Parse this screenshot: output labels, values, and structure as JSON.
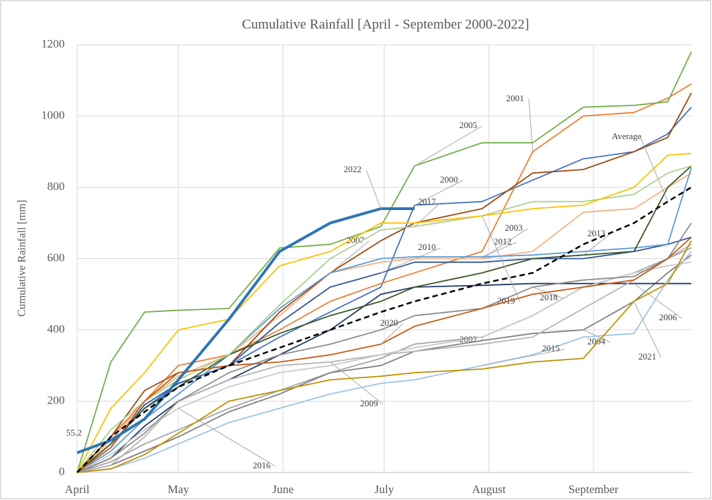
{
  "chart_data": {
    "type": "line",
    "title": "Cumulative Rainfall [April - September 2000-2022]",
    "y_label": "Cumulative Rainfall [mm]",
    "x": [
      0,
      10,
      20,
      30,
      45,
      60,
      75,
      90,
      100,
      120,
      135,
      150,
      165,
      175,
      182
    ],
    "xlim": [
      0,
      182
    ],
    "xticks": [
      {
        "value": 0,
        "label": "April"
      },
      {
        "value": 30,
        "label": "May"
      },
      {
        "value": 61,
        "label": "June"
      },
      {
        "value": 91,
        "label": "July"
      },
      {
        "value": 122,
        "label": "August"
      },
      {
        "value": 153,
        "label": "September"
      }
    ],
    "ylim": [
      0,
      1200
    ],
    "yticks": [
      0,
      200,
      400,
      600,
      800,
      1000,
      1200
    ],
    "grid": true,
    "series": [
      {
        "name": "2000",
        "color": "#4472c4",
        "values": [
          0,
          80,
          180,
          250,
          300,
          380,
          450,
          520,
          750,
          760,
          820,
          880,
          900,
          950,
          1025
        ]
      },
      {
        "name": "2001",
        "color": "#ed7d31",
        "values": [
          0,
          100,
          200,
          300,
          330,
          400,
          480,
          530,
          560,
          620,
          900,
          1000,
          1010,
          1050,
          1090
        ]
      },
      {
        "name": "2002",
        "color": "#a5a5a5",
        "values": [
          0,
          30,
          80,
          120,
          180,
          230,
          280,
          320,
          360,
          380,
          440,
          520,
          560,
          600,
          630
        ]
      },
      {
        "name": "2003",
        "color": "#f4b183",
        "values": [
          0,
          90,
          200,
          270,
          330,
          440,
          560,
          590,
          600,
          600,
          620,
          730,
          740,
          800,
          840
        ]
      },
      {
        "name": "2004",
        "color": "#7f7f7f",
        "values": [
          0,
          20,
          60,
          100,
          170,
          220,
          280,
          300,
          340,
          370,
          390,
          400,
          480,
          560,
          610
        ]
      },
      {
        "name": "2005",
        "color": "#70ad47",
        "values": [
          0,
          310,
          450,
          455,
          460,
          630,
          640,
          690,
          860,
          925,
          925,
          1025,
          1030,
          1040,
          1180
        ]
      },
      {
        "name": "2006",
        "color": "#203864",
        "values": [
          0,
          40,
          130,
          200,
          260,
          330,
          400,
          500,
          520,
          525,
          530,
          530,
          530,
          530,
          530
        ]
      },
      {
        "name": "2007",
        "color": "#9e480e",
        "values": [
          0,
          100,
          230,
          280,
          300,
          450,
          560,
          650,
          700,
          740,
          840,
          850,
          900,
          940,
          1065
        ]
      },
      {
        "name": "2009",
        "color": "#b4b4b4",
        "values": [
          0,
          20,
          100,
          200,
          260,
          300,
          310,
          330,
          340,
          360,
          380,
          460,
          540,
          600,
          640
        ]
      },
      {
        "name": "2010",
        "color": "#2f5597",
        "values": [
          0,
          70,
          190,
          250,
          300,
          420,
          520,
          560,
          590,
          590,
          600,
          600,
          620,
          640,
          660
        ]
      },
      {
        "name": "2012",
        "color": "#5b9bd5",
        "values": [
          0,
          60,
          150,
          220,
          330,
          460,
          560,
          600,
          605,
          605,
          610,
          620,
          630,
          640,
          855
        ]
      },
      {
        "name": "2013",
        "color": "#375623",
        "values": [
          0,
          80,
          180,
          240,
          330,
          390,
          440,
          480,
          520,
          560,
          600,
          610,
          620,
          800,
          860
        ]
      },
      {
        "name": "2015",
        "color": "#9dc3e6",
        "values": [
          0,
          10,
          40,
          80,
          140,
          180,
          220,
          250,
          260,
          300,
          330,
          380,
          390,
          540,
          620
        ]
      },
      {
        "name": "2016",
        "color": "#c9c9c9",
        "values": [
          0,
          50,
          120,
          180,
          240,
          280,
          300,
          330,
          350,
          380,
          440,
          520,
          560,
          580,
          590
        ]
      },
      {
        "name": "2017",
        "color": "#a9d18e",
        "values": [
          0,
          120,
          200,
          260,
          330,
          470,
          600,
          680,
          690,
          720,
          760,
          760,
          780,
          840,
          860
        ]
      },
      {
        "name": "2018",
        "color": "#8c8c8c",
        "values": [
          0,
          40,
          110,
          200,
          280,
          330,
          360,
          400,
          440,
          460,
          520,
          540,
          550,
          600,
          700
        ]
      },
      {
        "name": "2019",
        "color": "#ffc000",
        "values": [
          0,
          180,
          280,
          400,
          430,
          580,
          620,
          700,
          700,
          720,
          740,
          750,
          800,
          890,
          895
        ]
      },
      {
        "name": "2020",
        "color": "#c55a11",
        "values": [
          0,
          70,
          200,
          280,
          300,
          310,
          330,
          360,
          410,
          460,
          500,
          520,
          540,
          600,
          660
        ]
      },
      {
        "name": "2021",
        "color": "#bf9000",
        "values": [
          0,
          10,
          50,
          110,
          200,
          230,
          260,
          270,
          280,
          290,
          310,
          320,
          480,
          530,
          650
        ]
      },
      {
        "name": "2022",
        "color": "#2e75b6",
        "values": [
          55.2,
          90,
          150,
          260,
          430,
          620,
          700,
          740,
          740,
          null,
          null,
          null,
          null,
          null,
          null
        ]
      },
      {
        "name": "Average",
        "color": "#000000",
        "values": [
          0,
          100,
          170,
          240,
          300,
          350,
          400,
          450,
          480,
          530,
          560,
          640,
          700,
          760,
          800
        ]
      }
    ]
  }
}
